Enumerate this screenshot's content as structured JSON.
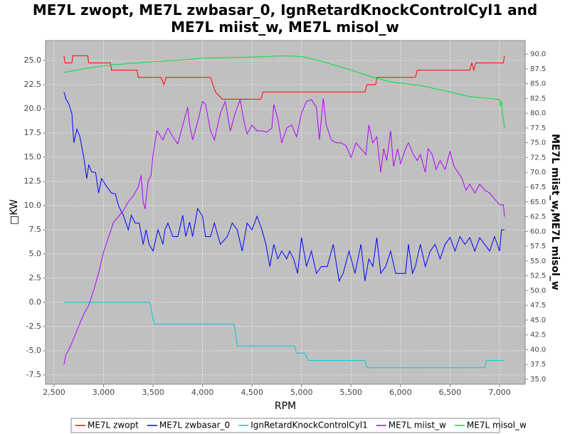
{
  "chart_data": {
    "type": "line",
    "title": "ME7L zwopt, ME7L zwbasar_0, IgnRetardKnockControlCyl1 and ME7L miist_w, ME7L misol_w",
    "x_label": "RPM",
    "y_label": "□KW",
    "y2_label": "ME7L miist_w,ME7L misol_w",
    "xlim": [
      2414,
      7259
    ],
    "ylim": [
      -8.46,
      27.06
    ],
    "y2lim": [
      34.16,
      92.29
    ],
    "grid": true,
    "legend": "bottom",
    "xticks": [
      {
        "value": 2500,
        "label": "2,500"
      },
      {
        "value": 3000,
        "label": "3,000"
      },
      {
        "value": 3500,
        "label": "3,500"
      },
      {
        "value": 4000,
        "label": "4,000"
      },
      {
        "value": 4500,
        "label": "4,500"
      },
      {
        "value": 5000,
        "label": "5,000"
      },
      {
        "value": 5500,
        "label": "5,500"
      },
      {
        "value": 6000,
        "label": "6,000"
      },
      {
        "value": 6500,
        "label": "6,500"
      },
      {
        "value": 7000,
        "label": "7,000"
      }
    ],
    "yticks": [
      -7.5,
      {
        "value": -5,
        "label": "-5.0"
      },
      -2.5,
      {
        "value": 0,
        "label": "0.0"
      },
      2.5,
      {
        "value": 5,
        "label": "5.0"
      },
      7.5,
      {
        "value": 10,
        "label": "10.0"
      },
      12.5,
      {
        "value": 15,
        "label": "15.0"
      },
      17.5,
      {
        "value": 20,
        "label": "20.0"
      },
      22.5,
      {
        "value": 25,
        "label": "25.0"
      }
    ],
    "y2ticks": [
      {
        "value": 35,
        "label": "35.0"
      },
      37.5,
      {
        "value": 40,
        "label": "40.0"
      },
      42.5,
      {
        "value": 45,
        "label": "45.0"
      },
      47.5,
      {
        "value": 50,
        "label": "50.0"
      },
      52.5,
      {
        "value": 55,
        "label": "55.0"
      },
      57.5,
      {
        "value": 60,
        "label": "60.0"
      },
      62.5,
      {
        "value": 65,
        "label": "65.0"
      },
      67.5,
      {
        "value": 70,
        "label": "70.0"
      },
      72.5,
      {
        "value": 75,
        "label": "75.0"
      },
      77.5,
      {
        "value": 80,
        "label": "80.0"
      },
      82.5,
      {
        "value": 85,
        "label": "85.0"
      },
      87.5,
      {
        "value": 90,
        "label": "90.0"
      }
    ],
    "series": [
      {
        "name": "ME7L zwopt",
        "color": "#ff0000",
        "x": [
          2600,
          2610,
          2680,
          2690,
          2840,
          2850,
          3070,
          3080,
          3340,
          3350,
          3580,
          3610,
          3630,
          4080,
          4130,
          4200,
          4590,
          4610,
          5640,
          5660,
          5750,
          5760,
          6150,
          6170,
          6700,
          6720,
          6740,
          6760,
          7040,
          7050
        ],
        "values": [
          25.5,
          24.75,
          24.75,
          25.5,
          25.5,
          24.75,
          24.75,
          24,
          24,
          23.25,
          23.25,
          22.5,
          23.25,
          23.25,
          21.75,
          21,
          21,
          21.75,
          21.75,
          22.5,
          22.5,
          23.25,
          23.25,
          24,
          24,
          24.75,
          24,
          24.75,
          24.75,
          25.5
        ]
      },
      {
        "name": "ME7L zwbasar_0",
        "color": "#0000ff",
        "x": [
          2600,
          2620,
          2650,
          2680,
          2700,
          2730,
          2760,
          2800,
          2830,
          2850,
          2880,
          2920,
          2950,
          2980,
          3030,
          3080,
          3120,
          3150,
          3200,
          3250,
          3280,
          3320,
          3360,
          3400,
          3430,
          3460,
          3500,
          3550,
          3600,
          3620,
          3650,
          3700,
          3750,
          3800,
          3830,
          3870,
          3900,
          3950,
          4000,
          4030,
          4080,
          4120,
          4180,
          4250,
          4300,
          4350,
          4400,
          4450,
          4500,
          4550,
          4600,
          4640,
          4680,
          4720,
          4760,
          4800,
          4850,
          4880,
          4920,
          4960,
          5000,
          5050,
          5100,
          5150,
          5200,
          5260,
          5320,
          5380,
          5420,
          5480,
          5540,
          5600,
          5640,
          5680,
          5720,
          5760,
          5800,
          5850,
          5900,
          5950,
          6000,
          6050,
          6080,
          6120,
          6150,
          6200,
          6250,
          6300,
          6350,
          6400,
          6450,
          6500,
          6550,
          6600,
          6650,
          6700,
          6750,
          6800,
          6850,
          6900,
          6950,
          7000,
          7020,
          7050
        ],
        "values": [
          21.75,
          21,
          20.5,
          19.5,
          16.5,
          17.9,
          17.2,
          15,
          12.8,
          14.2,
          13.5,
          13.4,
          11.3,
          12.8,
          12,
          11.3,
          11.2,
          10,
          9,
          7.5,
          9,
          8.2,
          8.2,
          6,
          7.5,
          6,
          5.3,
          7.5,
          6,
          7.5,
          8.2,
          6.8,
          6.8,
          9,
          6.8,
          8.3,
          6.8,
          9.7,
          8.9,
          6.8,
          6.8,
          8.2,
          6,
          6.8,
          8.2,
          7.5,
          5.3,
          8.2,
          7.5,
          8.9,
          7.5,
          6,
          3.7,
          6,
          4.5,
          5.3,
          4.5,
          5.3,
          4.5,
          3,
          6.7,
          3.7,
          5.3,
          3,
          3.7,
          3.7,
          6,
          2.2,
          3,
          5.3,
          3,
          6,
          2.2,
          4.5,
          3.7,
          6.7,
          3,
          3.7,
          5.3,
          3,
          3,
          3,
          6,
          3,
          3.7,
          6,
          3.7,
          5.3,
          6,
          4.5,
          6,
          6.7,
          5.3,
          6.8,
          6,
          6.7,
          5.3,
          6.7,
          6,
          5.3,
          6.8,
          5.3,
          7.5,
          7.5
        ]
      },
      {
        "name": "IgnRetardKnockControlCyl1",
        "color": "#00c8e0",
        "x": [
          2600,
          3470,
          3510,
          4320,
          4350,
          4930,
          4950,
          5030,
          5070,
          5640,
          5660,
          6850,
          6870,
          7050
        ],
        "values": [
          0,
          0,
          -2.25,
          -2.25,
          -4.5,
          -4.5,
          -5.25,
          -5.25,
          -6,
          -6,
          -6.75,
          -6.75,
          -6,
          -6
        ]
      },
      {
        "name": "ME7L miist_w",
        "color": "#b000ff",
        "axis": "y2",
        "x": [
          2600,
          2620,
          2650,
          2700,
          2750,
          2800,
          2850,
          2900,
          2950,
          3000,
          3050,
          3100,
          3150,
          3200,
          3250,
          3300,
          3350,
          3380,
          3400,
          3420,
          3450,
          3480,
          3500,
          3540,
          3600,
          3650,
          3700,
          3750,
          3800,
          3850,
          3870,
          3900,
          3950,
          4000,
          4030,
          4080,
          4120,
          4180,
          4230,
          4280,
          4330,
          4380,
          4420,
          4450,
          4500,
          4550,
          4600,
          4650,
          4700,
          4720,
          4760,
          4800,
          4850,
          4900,
          4950,
          5000,
          5050,
          5100,
          5150,
          5180,
          5220,
          5250,
          5300,
          5350,
          5400,
          5450,
          5500,
          5550,
          5600,
          5650,
          5680,
          5720,
          5760,
          5800,
          5830,
          5860,
          5900,
          5930,
          5970,
          6000,
          6050,
          6080,
          6130,
          6170,
          6200,
          6250,
          6280,
          6320,
          6360,
          6400,
          6450,
          6500,
          6540,
          6580,
          6620,
          6660,
          6700,
          6750,
          6800,
          6850,
          6900,
          6950,
          7000,
          7040,
          7050
        ],
        "values": [
          37.5,
          39.2,
          40,
          42,
          44,
          46,
          47.5,
          50,
          53,
          56.5,
          59,
          61.5,
          62.5,
          63.5,
          65,
          66,
          67.5,
          69.5,
          65,
          63.8,
          68.5,
          69.5,
          73,
          77,
          75.5,
          77.5,
          76,
          74.8,
          78,
          81,
          78,
          75.5,
          78.5,
          82,
          81.5,
          77,
          75.5,
          80,
          82,
          77,
          80,
          82.3,
          78.5,
          76.5,
          78,
          77,
          77,
          76.8,
          77.5,
          81.5,
          79,
          75,
          77.5,
          78,
          76,
          80,
          82,
          82.3,
          81,
          75.5,
          82.5,
          78,
          75.5,
          75,
          75,
          74.5,
          72.5,
          75,
          74,
          73,
          78,
          75,
          76,
          70,
          74,
          72,
          77,
          71,
          74,
          71.5,
          74,
          75,
          73,
          72,
          73,
          70,
          74,
          73,
          70.5,
          72,
          70.5,
          73.5,
          71,
          70,
          69,
          67,
          68,
          66.5,
          68,
          67,
          66.5,
          65.5,
          64.5,
          64.5,
          62.5
        ]
      },
      {
        "name": "ME7L misol_w",
        "color": "#00e040",
        "axis": "y2",
        "x": [
          2600,
          2800,
          3000,
          3100,
          3500,
          3800,
          4000,
          4500,
          4800,
          5000,
          5200,
          5500,
          5700,
          5900,
          6200,
          6500,
          6700,
          6900,
          7000,
          7010,
          7020,
          7030,
          7040,
          7050
        ],
        "values": [
          86.9,
          87.5,
          88,
          88.2,
          88.7,
          89,
          89.3,
          89.5,
          89.7,
          89.6,
          88.8,
          87.3,
          86.2,
          85.3,
          84.7,
          83.6,
          82.8,
          82.5,
          82.3,
          81.2,
          82,
          79.8,
          79,
          77.5
        ]
      }
    ]
  }
}
